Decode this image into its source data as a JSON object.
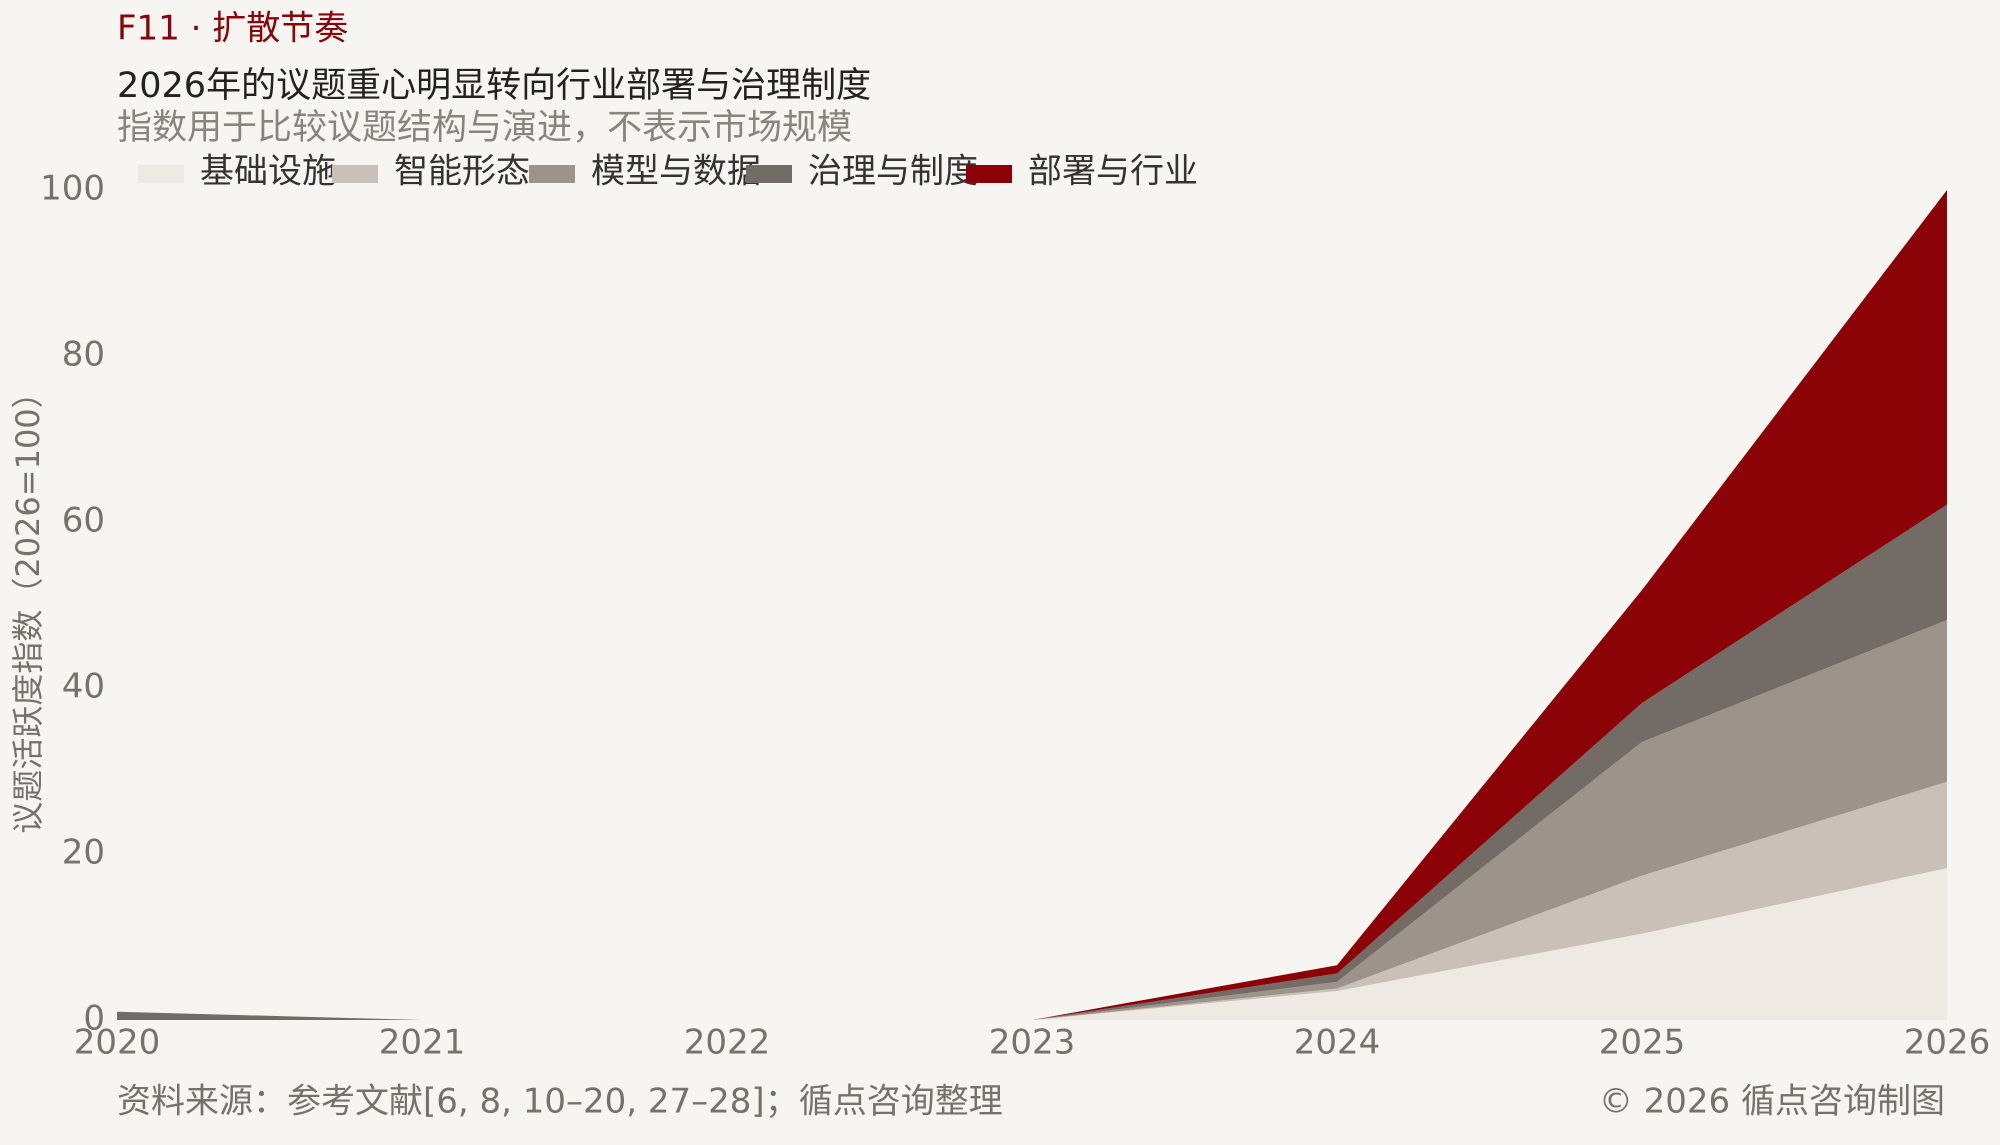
{
  "chart_data": {
    "type": "stacked_area",
    "figure_label": "F11 · 扩散节奏",
    "title": "2026年的议题重心明显转向行业部署与治理制度",
    "subtitle": "指数用于比较议题结构与演进，不表示市场规模",
    "y_label": "议题活跃度指数（2026=100）",
    "source": "资料来源：参考文献[6, 8, 10–20, 27–28]；循点咨询整理",
    "credit": "© 2026 循点咨询制图",
    "x": [
      2020,
      2021,
      2022,
      2023,
      2024,
      2025,
      2026
    ],
    "xlim": [
      2020,
      2026
    ],
    "xticks": [
      2020,
      2021,
      2022,
      2023,
      2024,
      2025,
      2026
    ],
    "ylim": [
      0,
      100
    ],
    "yticks": [
      0,
      20,
      40,
      60,
      80,
      100
    ],
    "grid": false,
    "legend": "top-left",
    "series": [
      {
        "name": "基础设施",
        "color": "#efe9e3",
        "values": [
          0,
          0,
          0,
          0,
          3.5,
          10.4,
          18.3
        ]
      },
      {
        "name": "智能形态",
        "color": "#c9c0b7",
        "values": [
          0,
          0,
          0,
          0,
          0.3,
          7.0,
          10.4
        ]
      },
      {
        "name": "模型与数据",
        "color": "#9c948b",
        "values": [
          0,
          0,
          0,
          0,
          0.8,
          16.1,
          19.5
        ]
      },
      {
        "name": "治理与制度",
        "color": "#736c66",
        "values": [
          1,
          0,
          0,
          0,
          1.0,
          4.7,
          13.9
        ]
      },
      {
        "name": "部署与行业",
        "color": "#8b0306",
        "values": [
          0,
          0,
          0,
          0,
          1.0,
          13.6,
          37.9
        ]
      }
    ]
  }
}
